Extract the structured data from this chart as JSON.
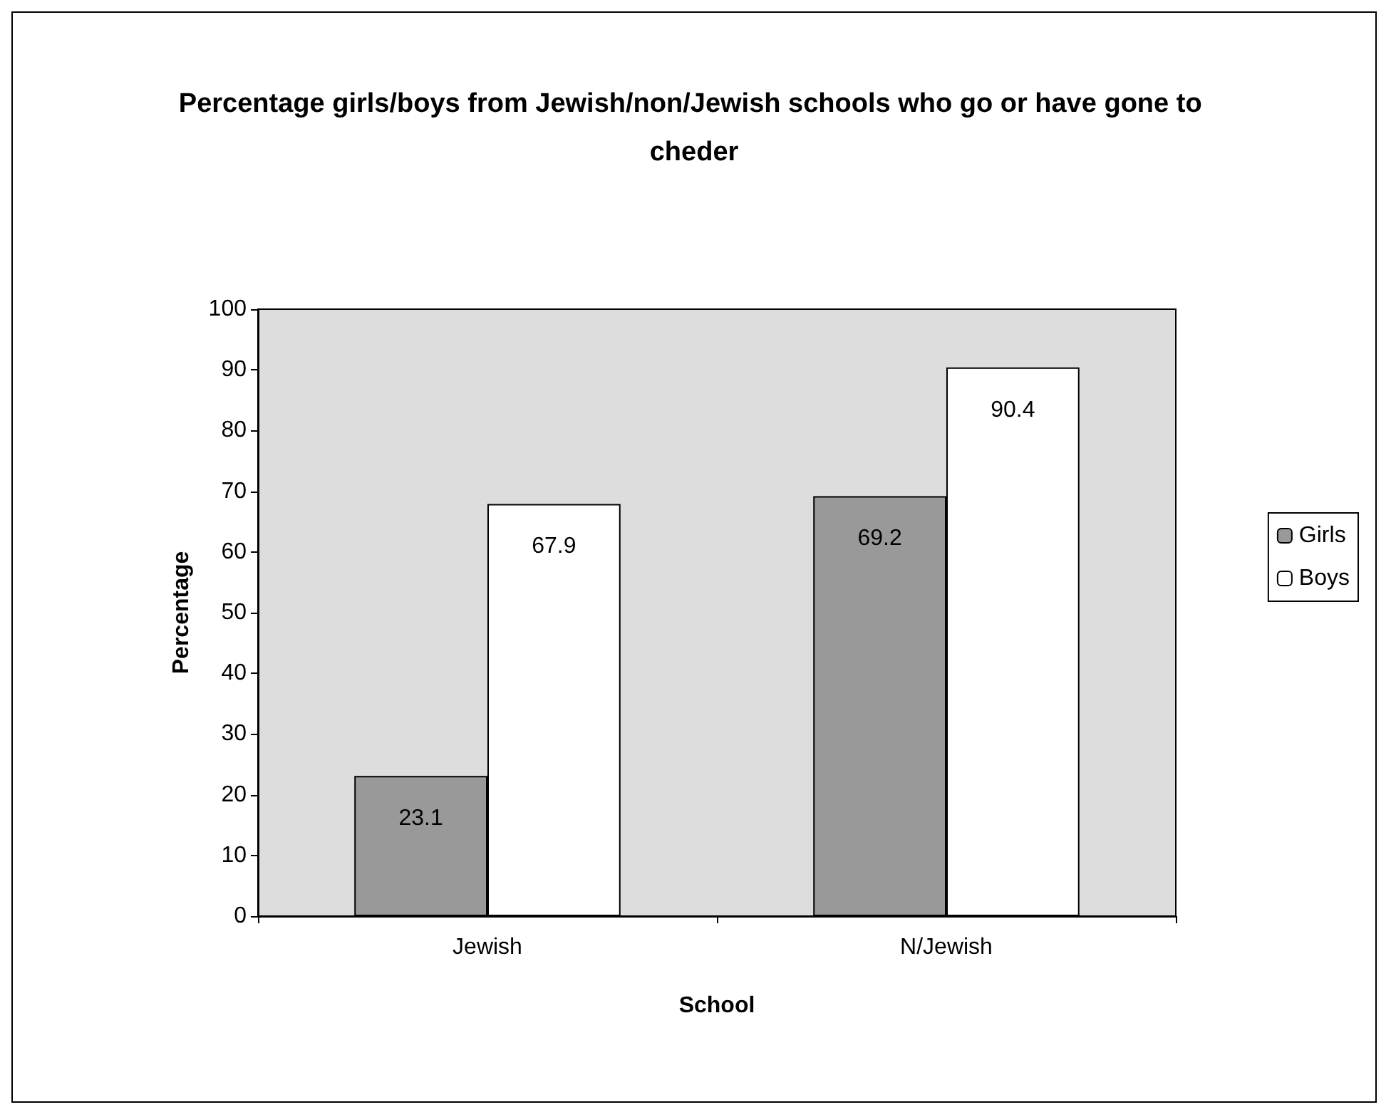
{
  "chart_data": {
    "type": "bar",
    "title": "Percentage girls/boys from Jewish/non/Jewish schools who go or have gone to cheder",
    "xlabel": "School",
    "ylabel": "Percentage",
    "categories": [
      "Jewish",
      "N/Jewish"
    ],
    "series": [
      {
        "name": "Girls",
        "color": "#999999",
        "values": [
          23.1,
          69.2
        ]
      },
      {
        "name": "Boys",
        "color": "#ffffff",
        "values": [
          67.9,
          90.4
        ]
      }
    ],
    "ylim": [
      0,
      100
    ],
    "yticks": [
      0,
      10,
      20,
      30,
      40,
      50,
      60,
      70,
      80,
      90,
      100
    ],
    "grid": false,
    "legend": "right",
    "data_labels": true
  }
}
